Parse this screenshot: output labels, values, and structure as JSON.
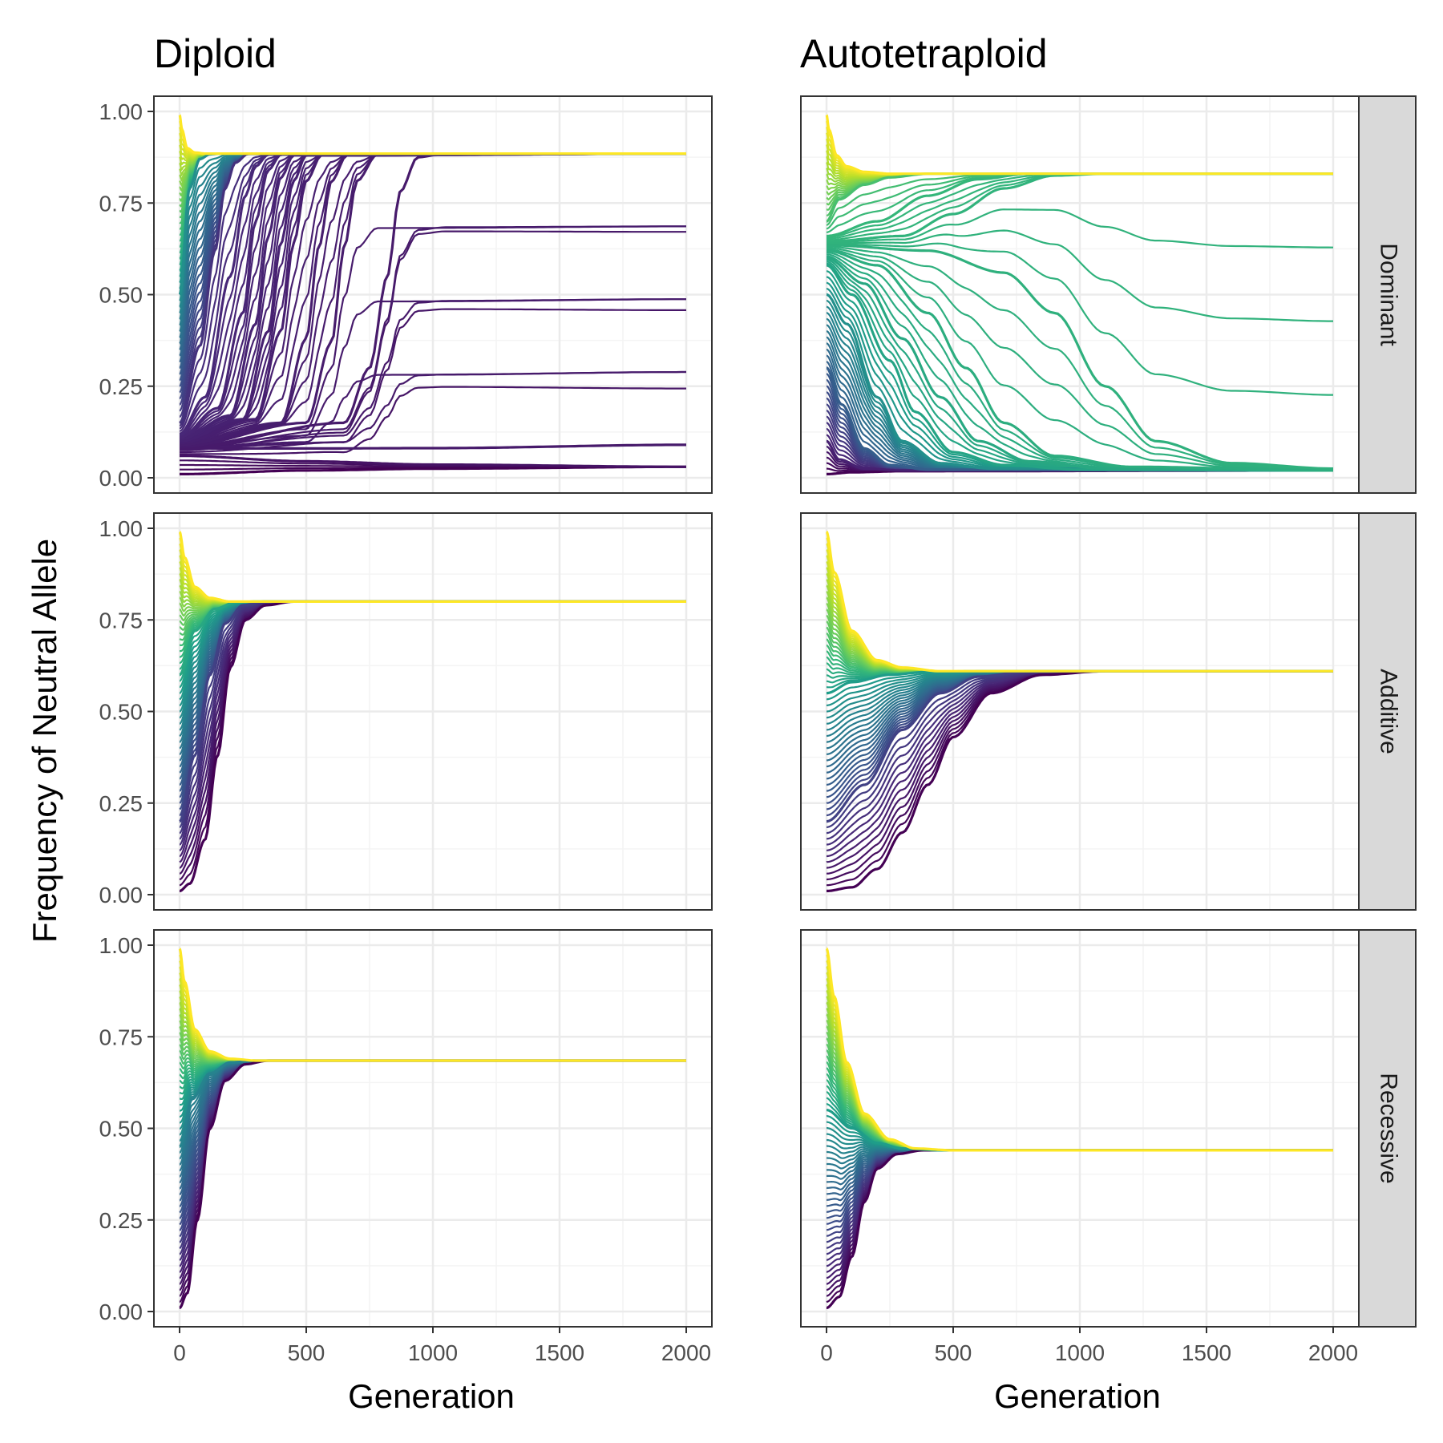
{
  "figure": {
    "col_titles": [
      "Diploid",
      "Autotetraploid"
    ],
    "row_strips": [
      "Dominant",
      "Additive",
      "Recessive"
    ],
    "xlabel": "Generation",
    "ylabel": "Frequency of Neutral Allele",
    "colors": {
      "panel_border": "#333333",
      "grid_major": "#ebebeb",
      "grid_minor": "#f4f4f4",
      "strip_fill": "#d9d9d9",
      "tick_label": "#4d4d4d"
    },
    "palette": "viridis"
  },
  "chart_data": [
    {
      "type": "line",
      "title": "Diploid",
      "row": "Dominant",
      "xlim": [
        0,
        2000
      ],
      "ylim": [
        0,
        1
      ],
      "x_ticks": [
        0,
        500,
        1000,
        1500,
        2000
      ],
      "x_tick_labels": [
        "0",
        "500",
        "1000",
        "1500",
        "2000"
      ],
      "y_ticks": [
        0,
        0.25,
        0.5,
        0.75,
        1
      ],
      "y_tick_labels": [
        "0.00",
        "0.25",
        "0.50",
        "0.75",
        "1.00"
      ],
      "equilibrium": 0.885,
      "grid": true,
      "series": [
        {
          "x": [
            0,
            10,
            30,
            60,
            100,
            2000
          ],
          "y": [
            0.99,
            0.95,
            0.9,
            0.888,
            0.885,
            0.885
          ]
        },
        {
          "x": [
            0,
            40,
            80,
            120,
            160,
            200,
            2000
          ],
          "y": [
            0.5,
            0.79,
            0.87,
            0.883,
            0.885,
            0.885,
            0.885
          ]
        },
        {
          "x": [
            0,
            80,
            140,
            180,
            220,
            270,
            2000
          ],
          "y": [
            0.15,
            0.36,
            0.62,
            0.79,
            0.86,
            0.884,
            0.885
          ]
        },
        {
          "x": [
            0,
            100,
            200,
            260,
            300,
            350,
            2000
          ],
          "y": [
            0.12,
            0.22,
            0.55,
            0.77,
            0.85,
            0.882,
            0.885
          ]
        },
        {
          "x": [
            0,
            150,
            250,
            300,
            350,
            400,
            2000
          ],
          "y": [
            0.11,
            0.19,
            0.45,
            0.7,
            0.84,
            0.882,
            0.885
          ]
        },
        {
          "x": [
            0,
            200,
            300,
            350,
            400,
            450,
            2000
          ],
          "y": [
            0.105,
            0.17,
            0.42,
            0.66,
            0.82,
            0.88,
            0.885
          ]
        },
        {
          "x": [
            0,
            250,
            350,
            400,
            450,
            500,
            2000
          ],
          "y": [
            0.1,
            0.16,
            0.4,
            0.64,
            0.81,
            0.88,
            0.885
          ]
        },
        {
          "x": [
            0,
            300,
            400,
            450,
            500,
            560,
            2000
          ],
          "y": [
            0.095,
            0.16,
            0.4,
            0.64,
            0.81,
            0.88,
            0.885
          ]
        },
        {
          "x": [
            0,
            400,
            500,
            550,
            600,
            660,
            2000
          ],
          "y": [
            0.09,
            0.15,
            0.38,
            0.63,
            0.81,
            0.88,
            0.885
          ]
        },
        {
          "x": [
            0,
            500,
            600,
            650,
            700,
            780,
            2000
          ],
          "y": [
            0.085,
            0.15,
            0.37,
            0.63,
            0.81,
            0.882,
            0.885
          ]
        },
        {
          "x": [
            0,
            650,
            750,
            820,
            870,
            940,
            1050,
            2000
          ],
          "y": [
            0.08,
            0.15,
            0.3,
            0.55,
            0.78,
            0.875,
            0.885,
            0.885
          ]
        },
        {
          "x": [
            0,
            500,
            1000,
            2000
          ],
          "y": [
            0.08,
            0.08,
            0.081,
            0.09
          ]
        },
        {
          "x": [
            0,
            500,
            1000,
            2000
          ],
          "y": [
            0.06,
            0.045,
            0.036,
            0.03
          ]
        },
        {
          "x": [
            0,
            500,
            1000,
            2000
          ],
          "y": [
            0.01,
            0.02,
            0.025,
            0.03
          ]
        }
      ]
    },
    {
      "type": "line",
      "title": "Autotetraploid",
      "row": "Dominant",
      "xlim": [
        0,
        2000
      ],
      "ylim": [
        0,
        1
      ],
      "x_ticks": [
        0,
        500,
        1000,
        1500,
        2000
      ],
      "x_tick_labels": [
        "0",
        "500",
        "1000",
        "1500",
        "2000"
      ],
      "y_ticks": [
        0,
        0.25,
        0.5,
        0.75,
        1
      ],
      "y_tick_labels": [
        "0.00",
        "0.25",
        "0.50",
        "0.75",
        "1.00"
      ],
      "equilibrium_high": 0.83,
      "equilibrium_low": 0.02,
      "grid": true,
      "series": [
        {
          "x": [
            0,
            10,
            40,
            80,
            150,
            250,
            2000
          ],
          "y": [
            0.99,
            0.95,
            0.88,
            0.85,
            0.835,
            0.83,
            0.83
          ]
        },
        {
          "x": [
            0,
            50,
            150,
            250,
            400,
            2000
          ],
          "y": [
            0.7,
            0.76,
            0.8,
            0.82,
            0.83,
            0.83
          ]
        },
        {
          "x": [
            0,
            200,
            400,
            600,
            800,
            2000
          ],
          "y": [
            0.66,
            0.7,
            0.77,
            0.815,
            0.83,
            0.83
          ]
        },
        {
          "x": [
            0,
            300,
            500,
            700,
            900,
            1100,
            2000
          ],
          "y": [
            0.645,
            0.66,
            0.72,
            0.79,
            0.825,
            0.83,
            0.83
          ]
        },
        {
          "x": [
            0,
            400,
            700,
            900,
            1100,
            1300,
            1600,
            2000
          ],
          "y": [
            0.635,
            0.62,
            0.56,
            0.45,
            0.25,
            0.1,
            0.04,
            0.025
          ]
        },
        {
          "x": [
            0,
            200,
            400,
            550,
            700,
            900,
            1200,
            2000
          ],
          "y": [
            0.62,
            0.58,
            0.45,
            0.3,
            0.15,
            0.06,
            0.03,
            0.02
          ]
        },
        {
          "x": [
            0,
            150,
            300,
            450,
            600,
            800,
            1100,
            2000
          ],
          "y": [
            0.6,
            0.53,
            0.38,
            0.22,
            0.1,
            0.045,
            0.025,
            0.02
          ]
        },
        {
          "x": [
            0,
            100,
            250,
            350,
            500,
            700,
            1000,
            2000
          ],
          "y": [
            0.58,
            0.5,
            0.32,
            0.18,
            0.07,
            0.035,
            0.022,
            0.02
          ]
        },
        {
          "x": [
            0,
            80,
            200,
            300,
            450,
            650,
            2000
          ],
          "y": [
            0.5,
            0.42,
            0.22,
            0.1,
            0.04,
            0.025,
            0.02
          ]
        },
        {
          "x": [
            0,
            60,
            150,
            250,
            400,
            2000
          ],
          "y": [
            0.3,
            0.2,
            0.08,
            0.035,
            0.022,
            0.02
          ]
        },
        {
          "x": [
            0,
            50,
            150,
            300,
            2000
          ],
          "y": [
            0.1,
            0.05,
            0.025,
            0.02,
            0.02
          ]
        },
        {
          "x": [
            0,
            100,
            300,
            2000
          ],
          "y": [
            0.01,
            0.015,
            0.018,
            0.02
          ]
        }
      ]
    },
    {
      "type": "line",
      "title": "Diploid",
      "row": "Additive",
      "xlim": [
        0,
        2000
      ],
      "ylim": [
        0,
        1
      ],
      "x_ticks": [
        0,
        500,
        1000,
        1500,
        2000
      ],
      "x_tick_labels": [
        "0",
        "500",
        "1000",
        "1500",
        "2000"
      ],
      "y_ticks": [
        0,
        0.25,
        0.5,
        0.75,
        1
      ],
      "y_tick_labels": [
        "0.00",
        "0.25",
        "0.50",
        "0.75",
        "1.00"
      ],
      "equilibrium": 0.8,
      "grid": true,
      "series": [
        {
          "x": [
            0,
            20,
            60,
            120,
            200,
            2000
          ],
          "y": [
            0.99,
            0.92,
            0.84,
            0.81,
            0.8,
            0.8
          ]
        },
        {
          "x": [
            0,
            60,
            140,
            220,
            300,
            2000
          ],
          "y": [
            0.6,
            0.72,
            0.78,
            0.798,
            0.8,
            0.8
          ]
        },
        {
          "x": [
            0,
            60,
            120,
            180,
            250,
            330,
            2000
          ],
          "y": [
            0.2,
            0.38,
            0.6,
            0.74,
            0.79,
            0.8,
            0.8
          ]
        },
        {
          "x": [
            0,
            40,
            100,
            150,
            200,
            260,
            340,
            450,
            2000
          ],
          "y": [
            0.01,
            0.03,
            0.15,
            0.38,
            0.62,
            0.75,
            0.79,
            0.8,
            0.8
          ]
        }
      ]
    },
    {
      "type": "line",
      "title": "Autotetraploid",
      "row": "Additive",
      "xlim": [
        0,
        2000
      ],
      "ylim": [
        0,
        1
      ],
      "x_ticks": [
        0,
        500,
        1000,
        1500,
        2000
      ],
      "x_tick_labels": [
        "0",
        "500",
        "1000",
        "1500",
        "2000"
      ],
      "y_ticks": [
        0,
        0.25,
        0.5,
        0.75,
        1
      ],
      "y_tick_labels": [
        "0.00",
        "0.25",
        "0.50",
        "0.75",
        "1.00"
      ],
      "equilibrium": 0.61,
      "grid": true,
      "series": [
        {
          "x": [
            0,
            30,
            100,
            200,
            300,
            450,
            2000
          ],
          "y": [
            0.99,
            0.88,
            0.72,
            0.64,
            0.62,
            0.61,
            0.61
          ]
        },
        {
          "x": [
            0,
            100,
            250,
            400,
            600,
            2000
          ],
          "y": [
            0.55,
            0.58,
            0.6,
            0.608,
            0.61,
            0.61
          ]
        },
        {
          "x": [
            0,
            150,
            300,
            450,
            600,
            800,
            2000
          ],
          "y": [
            0.2,
            0.3,
            0.45,
            0.55,
            0.595,
            0.61,
            0.61
          ]
        },
        {
          "x": [
            0,
            100,
            200,
            300,
            400,
            500,
            650,
            850,
            1100,
            2000
          ],
          "y": [
            0.01,
            0.02,
            0.07,
            0.17,
            0.3,
            0.43,
            0.55,
            0.6,
            0.61,
            0.61
          ]
        }
      ]
    },
    {
      "type": "line",
      "title": "Diploid",
      "row": "Recessive",
      "xlim": [
        0,
        2000
      ],
      "ylim": [
        0,
        1
      ],
      "x_ticks": [
        0,
        500,
        1000,
        1500,
        2000
      ],
      "x_tick_labels": [
        "0",
        "500",
        "1000",
        "1500",
        "2000"
      ],
      "y_ticks": [
        0,
        0.25,
        0.5,
        0.75,
        1
      ],
      "y_tick_labels": [
        "0.00",
        "0.25",
        "0.50",
        "0.75",
        "1.00"
      ],
      "equilibrium": 0.685,
      "grid": true,
      "series": [
        {
          "x": [
            0,
            20,
            60,
            120,
            200,
            300,
            2000
          ],
          "y": [
            0.99,
            0.9,
            0.77,
            0.71,
            0.69,
            0.685,
            0.685
          ]
        },
        {
          "x": [
            0,
            50,
            120,
            200,
            300,
            2000
          ],
          "y": [
            0.45,
            0.58,
            0.65,
            0.68,
            0.685,
            0.685
          ]
        },
        {
          "x": [
            0,
            30,
            70,
            120,
            180,
            260,
            350,
            2000
          ],
          "y": [
            0.01,
            0.05,
            0.25,
            0.5,
            0.63,
            0.675,
            0.685,
            0.685
          ]
        }
      ]
    },
    {
      "type": "line",
      "title": "Autotetraploid",
      "row": "Recessive",
      "xlim": [
        0,
        2000
      ],
      "ylim": [
        0,
        1
      ],
      "x_ticks": [
        0,
        500,
        1000,
        1500,
        2000
      ],
      "x_tick_labels": [
        "0",
        "500",
        "1000",
        "1500",
        "2000"
      ],
      "y_ticks": [
        0,
        0.25,
        0.5,
        0.75,
        1
      ],
      "y_tick_labels": [
        "0.00",
        "0.25",
        "0.50",
        "0.75",
        "1.00"
      ],
      "equilibrium": 0.44,
      "grid": true,
      "series": [
        {
          "x": [
            0,
            30,
            80,
            150,
            250,
            350,
            500,
            2000
          ],
          "y": [
            0.99,
            0.86,
            0.68,
            0.54,
            0.47,
            0.445,
            0.44,
            0.44
          ]
        },
        {
          "x": [
            0,
            100,
            200,
            300,
            450,
            2000
          ],
          "y": [
            0.55,
            0.5,
            0.46,
            0.445,
            0.44,
            0.44
          ]
        },
        {
          "x": [
            0,
            50,
            100,
            150,
            200,
            280,
            380,
            2000
          ],
          "y": [
            0.01,
            0.04,
            0.15,
            0.3,
            0.39,
            0.43,
            0.44,
            0.44
          ]
        }
      ]
    }
  ]
}
